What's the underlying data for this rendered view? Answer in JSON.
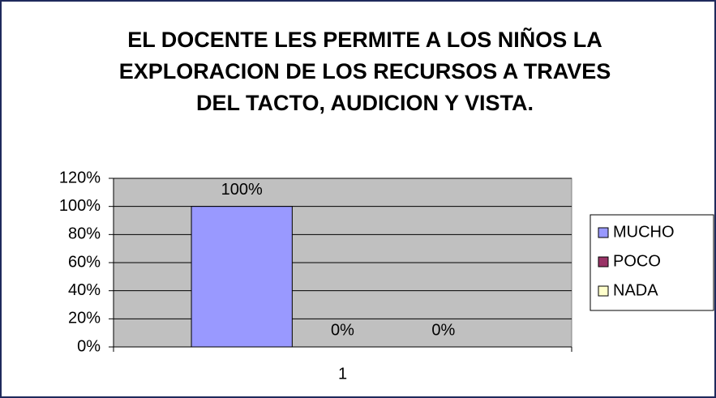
{
  "chart_data": {
    "type": "bar",
    "title": "EL DOCENTE LES PERMITE A LOS NIÑOS LA EXPLORACION DE LOS RECURSOS A TRAVES DEL TACTO, AUDICION Y VISTA.",
    "categories": [
      "1"
    ],
    "series": [
      {
        "name": "MUCHO",
        "color": "#9999ff",
        "values": [
          100
        ],
        "value_labels": [
          "100%"
        ]
      },
      {
        "name": "POCO",
        "color": "#993366",
        "values": [
          0
        ],
        "value_labels": [
          "0%"
        ]
      },
      {
        "name": "NADA",
        "color": "#ffffcc",
        "values": [
          0
        ],
        "value_labels": [
          "0%"
        ]
      }
    ],
    "ylim": [
      0,
      120
    ],
    "yticks": [
      {
        "value": 0,
        "label": "0%"
      },
      {
        "value": 20,
        "label": "20%"
      },
      {
        "value": 40,
        "label": "40%"
      },
      {
        "value": 60,
        "label": "60%"
      },
      {
        "value": 80,
        "label": "80%"
      },
      {
        "value": 100,
        "label": "100%"
      },
      {
        "value": 120,
        "label": "120%"
      }
    ],
    "grid": true,
    "legend": "right"
  }
}
